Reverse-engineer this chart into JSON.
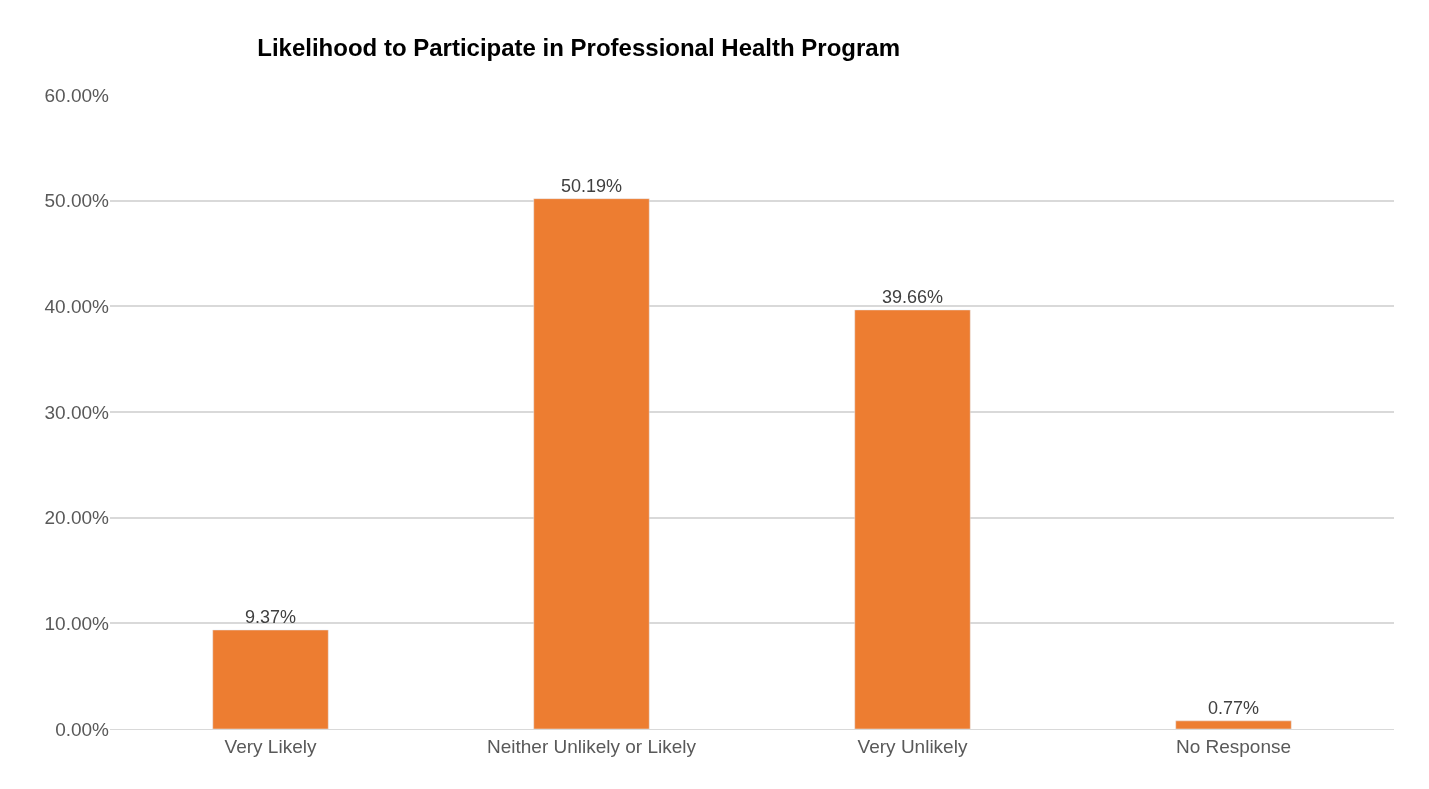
{
  "chart_data": {
    "type": "bar",
    "title": "Likelihood to Participate in Professional Health Program",
    "categories": [
      "Very Likely",
      "Neither Unlikely or Likely",
      "Very Unlikely",
      "No Response"
    ],
    "values": [
      9.37,
      50.19,
      39.66,
      0.77
    ],
    "value_labels": [
      "9.37%",
      "50.19%",
      "39.66%",
      "0.77%"
    ],
    "color": "#ed7d31",
    "ylim": [
      0,
      60
    ],
    "yticks": [
      {
        "value": 0,
        "label": "0.00%"
      },
      {
        "value": 10,
        "label": "10.00%"
      },
      {
        "value": 20,
        "label": "20.00%"
      },
      {
        "value": 30,
        "label": "30.00%"
      },
      {
        "value": 40,
        "label": "40.00%"
      },
      {
        "value": 50,
        "label": "50.00%"
      },
      {
        "value": 60,
        "label": "60.00%"
      }
    ],
    "grid": "y",
    "legend": false
  }
}
